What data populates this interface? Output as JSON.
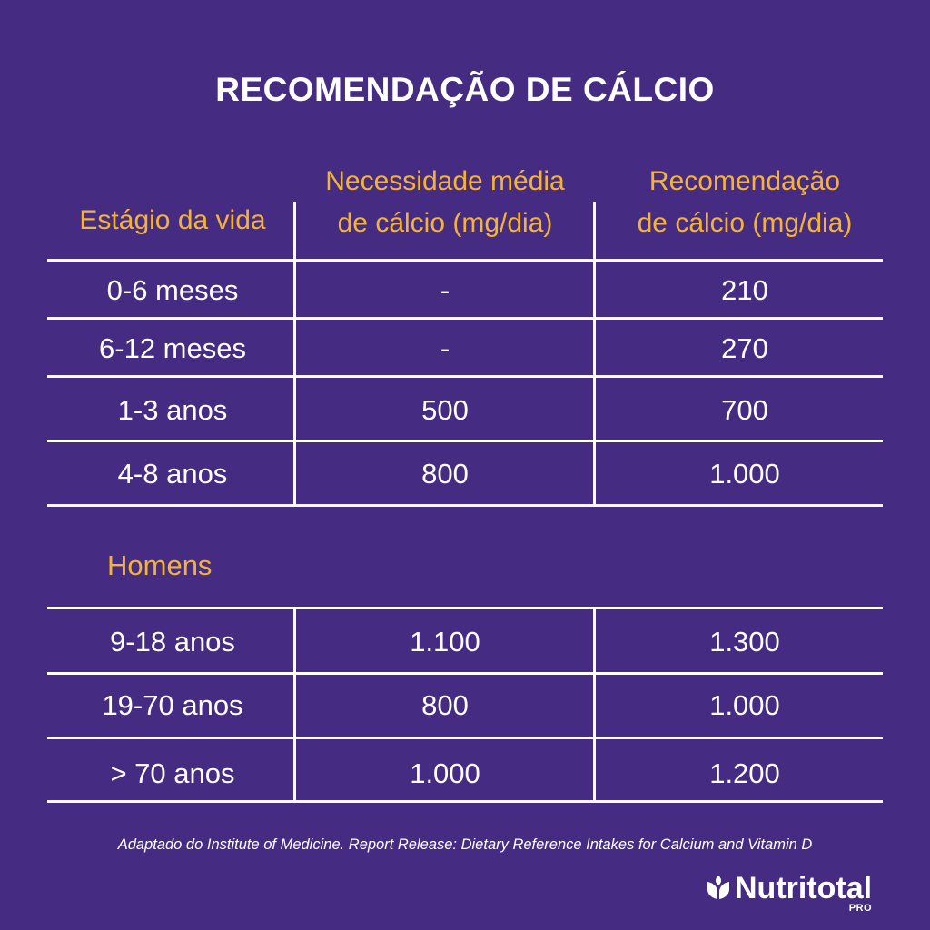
{
  "title": "RECOMENDAÇÃO DE CÁLCIO",
  "headers": {
    "col1": "Estágio da vida",
    "col2_line1": "Necessidade média",
    "col2_line2": "de cálcio (mg/dia)",
    "col3_line1": "Recomendação",
    "col3_line2": "de cálcio (mg/dia)"
  },
  "group1_rows": [
    {
      "stage": "0-6 meses",
      "need": "-",
      "rec": "210"
    },
    {
      "stage": "6-12 meses",
      "need": "-",
      "rec": "270"
    },
    {
      "stage": "1-3 anos",
      "need": "500",
      "rec": "700"
    },
    {
      "stage": "4-8 anos",
      "need": "800",
      "rec": "1.000"
    }
  ],
  "section_label": "Homens",
  "group2_rows": [
    {
      "stage": "9-18 anos",
      "need": "1.100",
      "rec": "1.300"
    },
    {
      "stage": "19-70 anos",
      "need": "800",
      "rec": "1.000"
    },
    {
      "stage": "> 70 anos",
      "need": "1.000",
      "rec": "1.200"
    }
  ],
  "source": "Adaptado do Institute of Medicine. Report Release: Dietary Reference Intakes for Calcium and Vitamin D",
  "brand": {
    "name": "Nutritotal",
    "suffix": "PRO",
    "icon": "leaf-icon"
  },
  "colors": {
    "background": "#452c82",
    "accent": "#f5b335",
    "text": "#ffffff"
  }
}
